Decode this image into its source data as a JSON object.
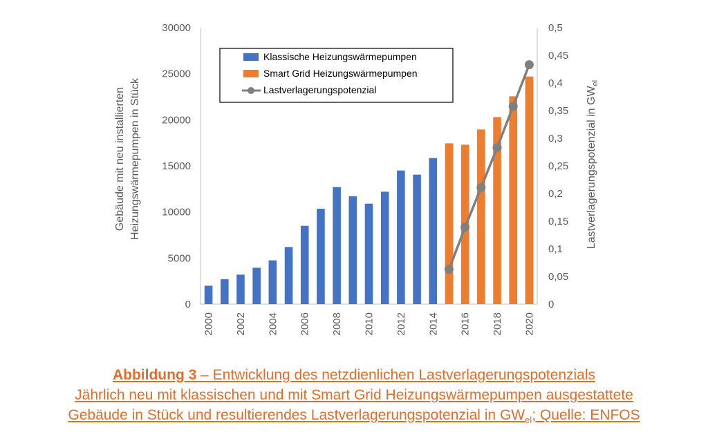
{
  "chart_data": {
    "type": "bar",
    "categories": [
      "2000",
      "2001",
      "2002",
      "2003",
      "2004",
      "2005",
      "2006",
      "2007",
      "2008",
      "2009",
      "2010",
      "2011",
      "2012",
      "2013",
      "2014",
      "2015",
      "2016",
      "2017",
      "2018",
      "2019",
      "2020"
    ],
    "x_tick_labels": [
      "2000",
      "2002",
      "2004",
      "2006",
      "2008",
      "2010",
      "2012",
      "2014",
      "2016",
      "2018",
      "2020"
    ],
    "series": [
      {
        "name": "Klassische Heizungswärmepumpen",
        "type": "bar",
        "axis": "left",
        "color": "#4472c4",
        "values": [
          2000,
          2700,
          3200,
          3950,
          4750,
          6200,
          8500,
          10350,
          12700,
          11700,
          10900,
          12200,
          14500,
          14050,
          15850,
          null,
          null,
          null,
          null,
          null,
          null
        ]
      },
      {
        "name": "Smart Grid Heizungswärmepumpen",
        "type": "bar",
        "axis": "left",
        "color": "#ed7d31",
        "values": [
          null,
          null,
          null,
          null,
          null,
          null,
          null,
          null,
          null,
          null,
          null,
          null,
          null,
          null,
          null,
          17450,
          17300,
          18950,
          20300,
          22550,
          24700
        ]
      },
      {
        "name": "Lastverlagerungspotenzial",
        "type": "line",
        "axis": "right",
        "color": "#7f7f7f",
        "marker": "circle",
        "values": [
          null,
          null,
          null,
          null,
          null,
          null,
          null,
          null,
          null,
          null,
          null,
          null,
          null,
          null,
          null,
          0.063,
          0.139,
          0.211,
          0.283,
          0.358,
          0.433
        ]
      }
    ],
    "y_left": {
      "label_line1": "Gebäude mit neu installierten",
      "label_line2": "Heizungswärmepumpen in Stück",
      "ylim": [
        0,
        30000
      ],
      "ticks": [
        "0",
        "5000",
        "10000",
        "15000",
        "20000",
        "25000",
        "30000"
      ]
    },
    "y_right": {
      "label_main": "Lastverlagerungspotenzial  in GW",
      "label_sub": "el",
      "ylim": [
        0,
        0.5
      ],
      "ticks": [
        "0",
        "0,05",
        "0,1",
        "0,15",
        "0,2",
        "0,25",
        "0,3",
        "0,35",
        "0,4",
        "0,45",
        "0,5"
      ]
    },
    "grid": false,
    "legend_position": "top-left inside"
  },
  "caption": {
    "bold": "Abbildung 3",
    "line1_rest": " – Entwicklung des netzdienlichen Lastverlagerungspotenzials",
    "line2": "Jährlich neu mit klassischen und mit Smart Grid Heizungswärmepumpen ausgestattete",
    "line3_pre": "Gebäude in Stück und resultierendes Lastverlagerungspotenzial in GW",
    "line3_sub": "el",
    "line3_post": "; Quelle: ENFOS"
  }
}
